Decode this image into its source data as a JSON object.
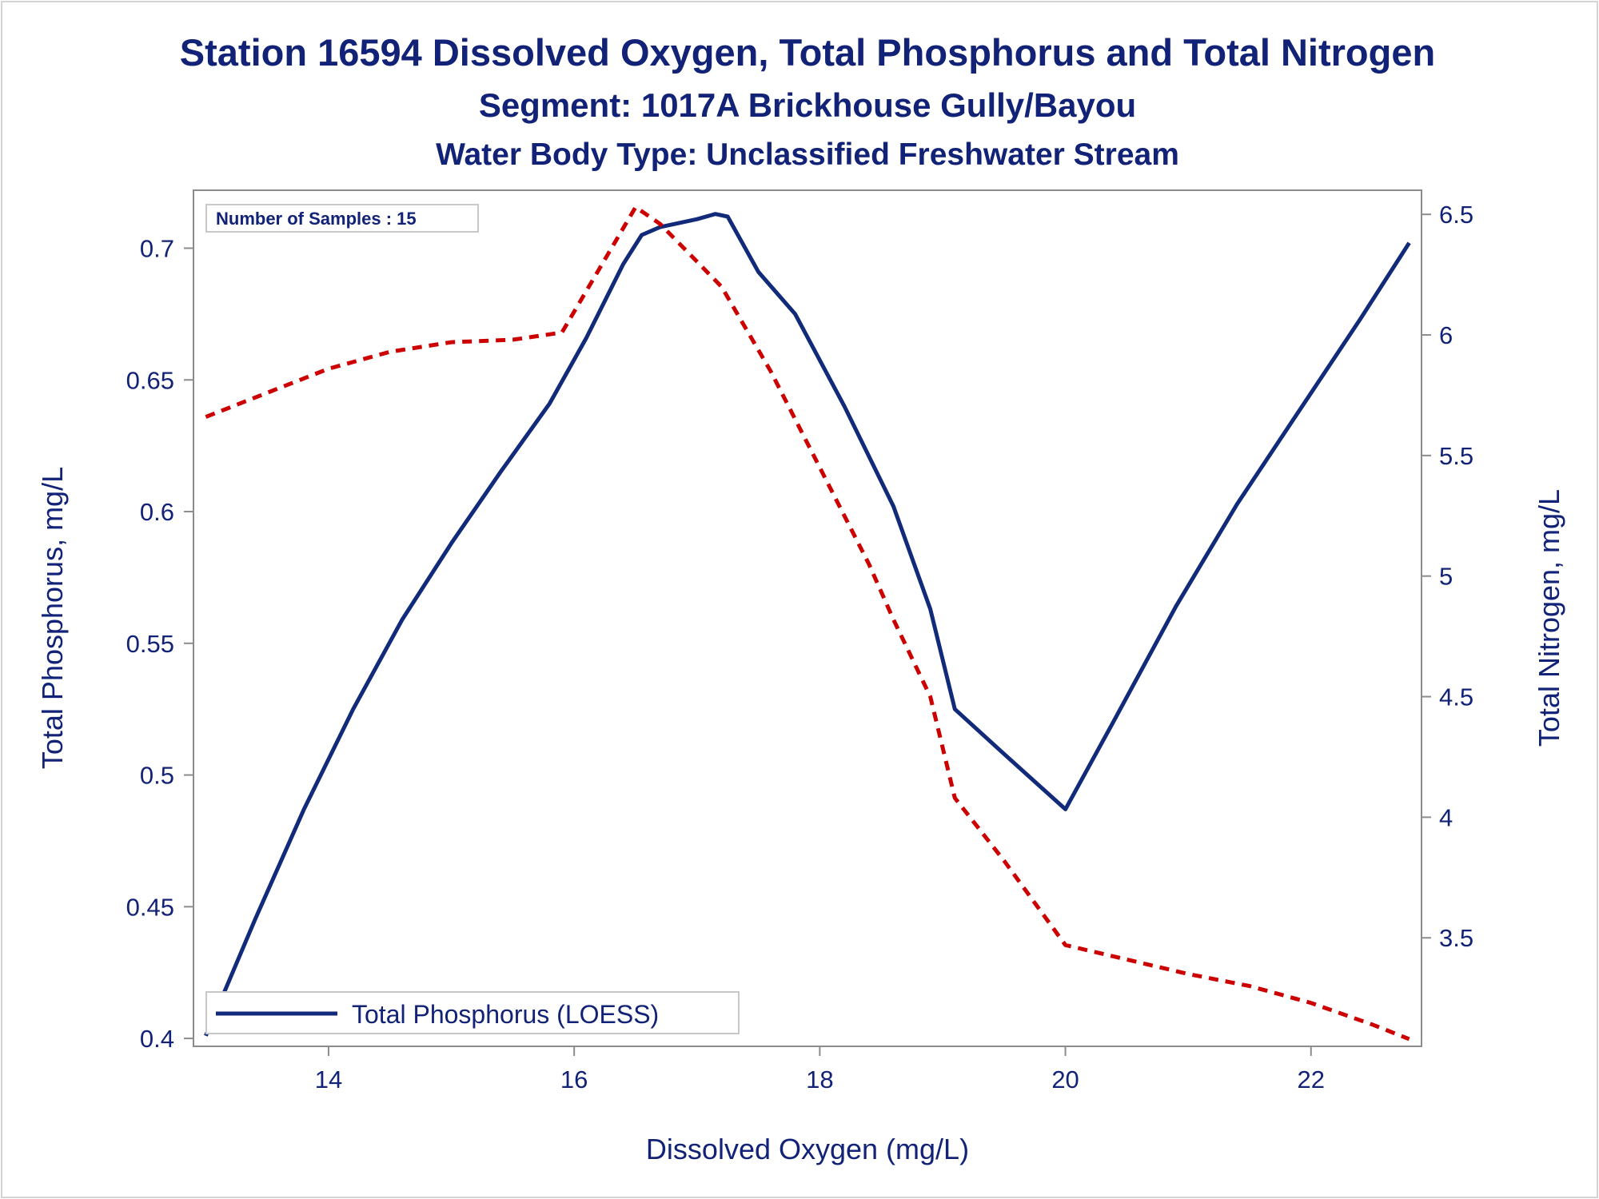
{
  "titles": {
    "line1": "Station 16594  Dissolved Oxygen, Total Phosphorus and Total Nitrogen",
    "line2": "Segment: 1017A  Brickhouse Gully/Bayou",
    "line3": "Water Body Type: Unclassified Freshwater Stream"
  },
  "inset": {
    "text": "Number of Samples : 15"
  },
  "legend": {
    "phosphorus_label": "Total Phosphorus (LOESS)"
  },
  "colors": {
    "phosphorus": "#112a7a",
    "nitrogen": "#cc0000",
    "text": "#112277",
    "axis": "#8c8c8c"
  },
  "chart_data": {
    "type": "line",
    "xlabel": "Dissolved Oxygen (mg/L)",
    "ylabel": "Total Phosphorus, mg/L",
    "y2label": "Total Nitrogen, mg/L",
    "xlim": [
      12.9,
      22.9
    ],
    "ylim": [
      0.397,
      0.722
    ],
    "y2lim": [
      3.05,
      6.6
    ],
    "xticks": [
      "14",
      "16",
      "18",
      "20",
      "22"
    ],
    "yticks": [
      "0.4",
      "0.45",
      "0.5",
      "0.55",
      "0.6",
      "0.65",
      "0.7"
    ],
    "y2ticks": [
      "3.5",
      "4",
      "4.5",
      "5",
      "5.5",
      "6",
      "6.5"
    ],
    "series": [
      {
        "name": "Total Phosphorus (LOESS)",
        "axis": "left",
        "style": "solid",
        "x": [
          13.0,
          13.4,
          13.8,
          14.2,
          14.6,
          15.0,
          15.4,
          15.8,
          16.1,
          16.4,
          16.55,
          16.7,
          17.0,
          17.15,
          17.25,
          17.5,
          17.8,
          18.2,
          18.6,
          18.9,
          19.1,
          19.5,
          20.0,
          20.4,
          20.9,
          21.4,
          21.9,
          22.4,
          22.8
        ],
        "y": [
          0.401,
          0.445,
          0.487,
          0.525,
          0.559,
          0.588,
          0.615,
          0.641,
          0.666,
          0.694,
          0.705,
          0.708,
          0.711,
          0.713,
          0.712,
          0.691,
          0.675,
          0.64,
          0.602,
          0.563,
          0.525,
          0.508,
          0.487,
          0.521,
          0.564,
          0.603,
          0.638,
          0.673,
          0.702
        ]
      },
      {
        "name": "Total Nitrogen",
        "axis": "right",
        "style": "dashed",
        "x": [
          13.0,
          13.5,
          14.0,
          14.5,
          15.0,
          15.5,
          15.9,
          16.2,
          16.5,
          16.7,
          17.2,
          17.6,
          18.0,
          18.4,
          18.6,
          18.9,
          19.1,
          19.5,
          20.0,
          20.5,
          21.0,
          21.5,
          22.0,
          22.5,
          22.8
        ],
        "y": [
          5.66,
          5.76,
          5.86,
          5.93,
          5.97,
          5.98,
          6.01,
          6.27,
          6.53,
          6.46,
          6.2,
          5.85,
          5.45,
          5.05,
          4.82,
          4.5,
          4.08,
          3.82,
          3.47,
          3.41,
          3.35,
          3.3,
          3.23,
          3.14,
          3.08
        ]
      }
    ]
  }
}
